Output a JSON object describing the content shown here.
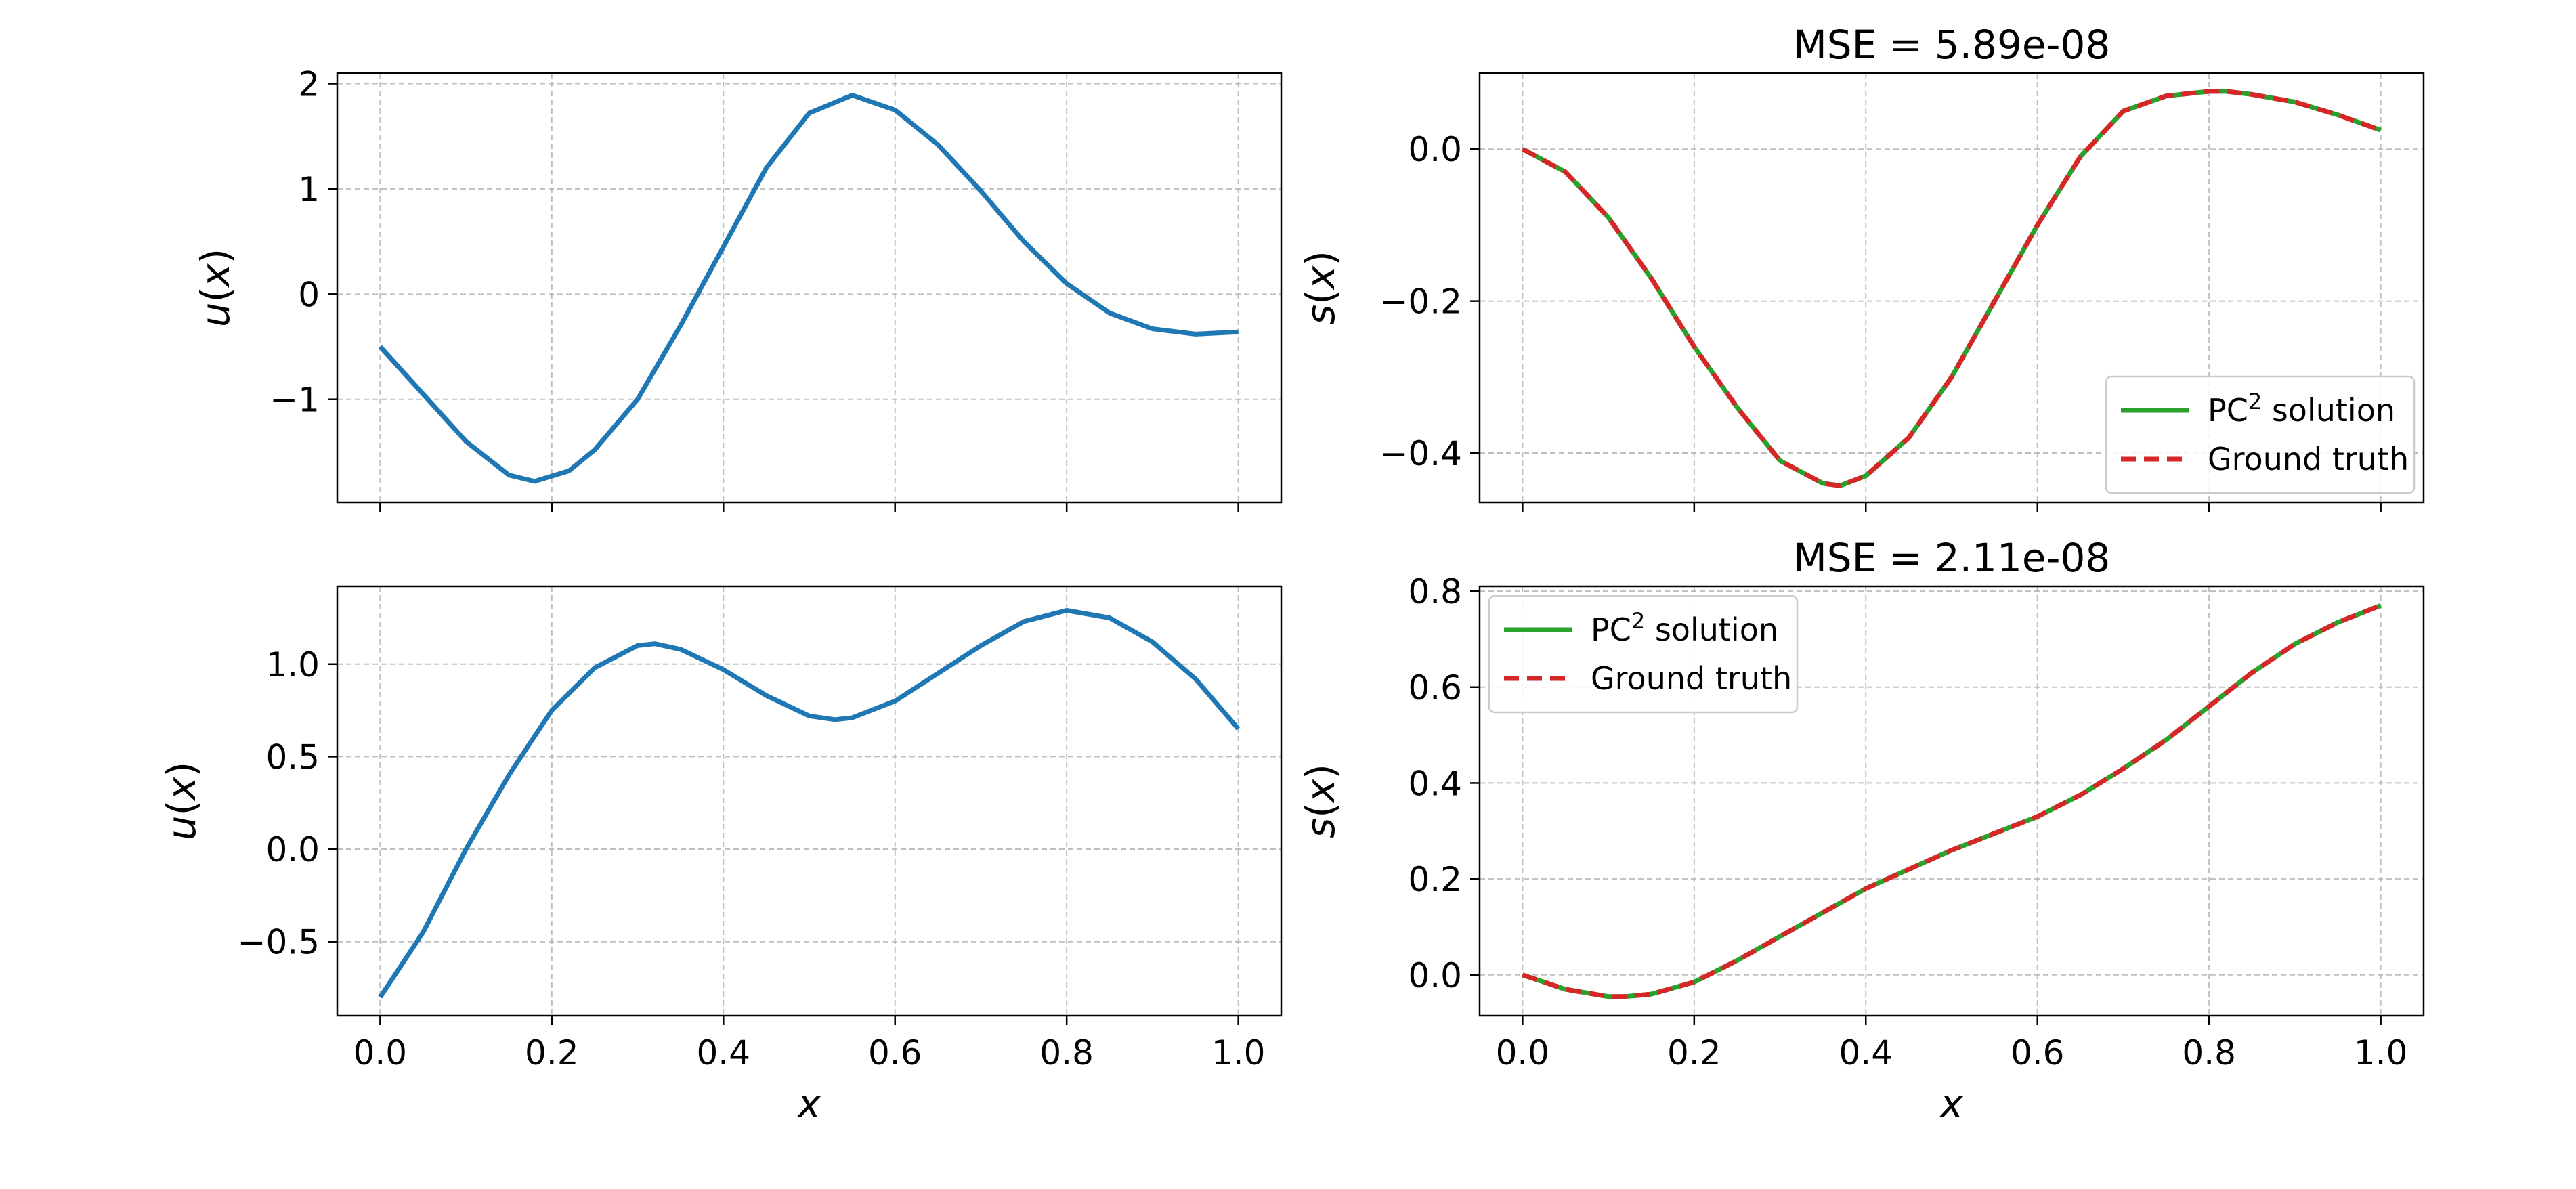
{
  "chart_data": [
    {
      "id": "top-left",
      "type": "line",
      "title": "",
      "xlabel": "",
      "ylabel": "u(x)",
      "ylabel_parts": [
        "u",
        "(",
        "x",
        ")"
      ],
      "xlim": [
        -0.05,
        1.05
      ],
      "ylim": [
        -1.98,
        2.1
      ],
      "grid": true,
      "show_xtick_labels": false,
      "xticks": [
        0.0,
        0.2,
        0.4,
        0.6,
        0.8,
        1.0
      ],
      "xtick_labels": [
        "0.0",
        "0.2",
        "0.4",
        "0.6",
        "0.8",
        "1.0"
      ],
      "yticks": [
        -1,
        0,
        1,
        2
      ],
      "ytick_labels": [
        "−1",
        "0",
        "1",
        "2"
      ],
      "colors": {
        "u": "#1f77b4"
      },
      "series": [
        {
          "style": "solid",
          "color": "#1f77b4",
          "x": [
            0.0,
            0.05,
            0.1,
            0.15,
            0.18,
            0.22,
            0.25,
            0.3,
            0.35,
            0.4,
            0.45,
            0.5,
            0.55,
            0.6,
            0.65,
            0.7,
            0.75,
            0.8,
            0.85,
            0.9,
            0.95,
            1.0
          ],
          "y": [
            -0.5,
            -0.95,
            -1.4,
            -1.72,
            -1.78,
            -1.68,
            -1.48,
            -1.0,
            -0.3,
            0.45,
            1.2,
            1.72,
            1.89,
            1.75,
            1.42,
            0.98,
            0.5,
            0.1,
            -0.18,
            -0.33,
            -0.38,
            -0.36
          ]
        }
      ]
    },
    {
      "id": "top-right",
      "type": "line",
      "title": "MSE = 5.89e-08",
      "xlabel": "",
      "ylabel": "s(x)",
      "ylabel_parts": [
        "s",
        "(",
        "x",
        ")"
      ],
      "xlim": [
        -0.05,
        1.05
      ],
      "ylim": [
        -0.465,
        0.1
      ],
      "grid": true,
      "show_xtick_labels": false,
      "xticks": [
        0.0,
        0.2,
        0.4,
        0.6,
        0.8,
        1.0
      ],
      "xtick_labels": [
        "0.0",
        "0.2",
        "0.4",
        "0.6",
        "0.8",
        "1.0"
      ],
      "yticks": [
        -0.4,
        -0.2,
        0.0
      ],
      "ytick_labels": [
        "−0.4",
        "−0.2",
        "0.0"
      ],
      "legend": {
        "position": "lower-right",
        "entries": [
          {
            "label_main": "PC",
            "label_sup": "2",
            "label_rest": " solution",
            "color": "#2ca02c",
            "style": "solid"
          },
          {
            "label_main": "Ground truth",
            "label_sup": "",
            "label_rest": "",
            "color": "#d62728",
            "style": "dashed"
          }
        ]
      },
      "colors": {
        "pc2": "#2ca02c",
        "truth": "#d62728"
      },
      "series": [
        {
          "style": "solid",
          "color": "#2ca02c",
          "x": [
            0.0,
            0.05,
            0.1,
            0.15,
            0.2,
            0.25,
            0.3,
            0.35,
            0.37,
            0.4,
            0.45,
            0.5,
            0.55,
            0.6,
            0.65,
            0.7,
            0.75,
            0.8,
            0.82,
            0.85,
            0.9,
            0.95,
            1.0
          ],
          "y": [
            0.0,
            -0.03,
            -0.09,
            -0.17,
            -0.26,
            -0.34,
            -0.41,
            -0.44,
            -0.443,
            -0.43,
            -0.38,
            -0.3,
            -0.2,
            -0.1,
            -0.01,
            0.05,
            0.07,
            0.076,
            0.076,
            0.072,
            0.062,
            0.045,
            0.025
          ]
        },
        {
          "style": "dashed",
          "color": "#d62728",
          "x": [
            0.0,
            0.05,
            0.1,
            0.15,
            0.2,
            0.25,
            0.3,
            0.35,
            0.37,
            0.4,
            0.45,
            0.5,
            0.55,
            0.6,
            0.65,
            0.7,
            0.75,
            0.8,
            0.82,
            0.85,
            0.9,
            0.95,
            1.0
          ],
          "y": [
            0.0,
            -0.03,
            -0.09,
            -0.17,
            -0.26,
            -0.34,
            -0.41,
            -0.44,
            -0.443,
            -0.43,
            -0.38,
            -0.3,
            -0.2,
            -0.1,
            -0.01,
            0.05,
            0.07,
            0.076,
            0.076,
            0.072,
            0.062,
            0.045,
            0.025
          ]
        }
      ]
    },
    {
      "id": "bottom-left",
      "type": "line",
      "title": "",
      "xlabel": "x",
      "ylabel": "u(x)",
      "ylabel_parts": [
        "u",
        "(",
        "x",
        ")"
      ],
      "xlim": [
        -0.05,
        1.05
      ],
      "ylim": [
        -0.9,
        1.42
      ],
      "grid": true,
      "show_xtick_labels": true,
      "xticks": [
        0.0,
        0.2,
        0.4,
        0.6,
        0.8,
        1.0
      ],
      "xtick_labels": [
        "0.0",
        "0.2",
        "0.4",
        "0.6",
        "0.8",
        "1.0"
      ],
      "yticks": [
        -0.5,
        0.0,
        0.5,
        1.0
      ],
      "ytick_labels": [
        "−0.5",
        "0.0",
        "0.5",
        "1.0"
      ],
      "colors": {
        "u": "#1f77b4"
      },
      "series": [
        {
          "style": "solid",
          "color": "#1f77b4",
          "x": [
            0.0,
            0.05,
            0.1,
            0.15,
            0.2,
            0.25,
            0.3,
            0.32,
            0.35,
            0.4,
            0.45,
            0.5,
            0.53,
            0.55,
            0.6,
            0.65,
            0.7,
            0.75,
            0.8,
            0.85,
            0.9,
            0.95,
            1.0
          ],
          "y": [
            -0.8,
            -0.45,
            0.0,
            0.4,
            0.75,
            0.98,
            1.1,
            1.11,
            1.08,
            0.97,
            0.83,
            0.72,
            0.7,
            0.71,
            0.8,
            0.95,
            1.1,
            1.23,
            1.29,
            1.25,
            1.12,
            0.92,
            0.65
          ]
        }
      ]
    },
    {
      "id": "bottom-right",
      "type": "line",
      "title": "MSE = 2.11e-08",
      "xlabel": "x",
      "ylabel": "s(x)",
      "ylabel_parts": [
        "s",
        "(",
        "x",
        ")"
      ],
      "xlim": [
        -0.05,
        1.05
      ],
      "ylim": [
        -0.085,
        0.81
      ],
      "grid": true,
      "show_xtick_labels": true,
      "xticks": [
        0.0,
        0.2,
        0.4,
        0.6,
        0.8,
        1.0
      ],
      "xtick_labels": [
        "0.0",
        "0.2",
        "0.4",
        "0.6",
        "0.8",
        "1.0"
      ],
      "yticks": [
        0.0,
        0.2,
        0.4,
        0.6,
        0.8
      ],
      "ytick_labels": [
        "0.0",
        "0.2",
        "0.4",
        "0.6",
        "0.8"
      ],
      "legend": {
        "position": "upper-left",
        "entries": [
          {
            "label_main": "PC",
            "label_sup": "2",
            "label_rest": " solution",
            "color": "#2ca02c",
            "style": "solid"
          },
          {
            "label_main": "Ground truth",
            "label_sup": "",
            "label_rest": "",
            "color": "#d62728",
            "style": "dashed"
          }
        ]
      },
      "colors": {
        "pc2": "#2ca02c",
        "truth": "#d62728"
      },
      "series": [
        {
          "style": "solid",
          "color": "#2ca02c",
          "x": [
            0.0,
            0.05,
            0.1,
            0.12,
            0.15,
            0.2,
            0.25,
            0.3,
            0.35,
            0.4,
            0.45,
            0.5,
            0.55,
            0.6,
            0.65,
            0.7,
            0.75,
            0.8,
            0.85,
            0.9,
            0.95,
            1.0
          ],
          "y": [
            0.0,
            -0.03,
            -0.045,
            -0.045,
            -0.04,
            -0.015,
            0.03,
            0.08,
            0.13,
            0.18,
            0.22,
            0.26,
            0.295,
            0.33,
            0.375,
            0.43,
            0.49,
            0.56,
            0.63,
            0.69,
            0.735,
            0.77
          ]
        },
        {
          "style": "dashed",
          "color": "#d62728",
          "x": [
            0.0,
            0.05,
            0.1,
            0.12,
            0.15,
            0.2,
            0.25,
            0.3,
            0.35,
            0.4,
            0.45,
            0.5,
            0.55,
            0.6,
            0.65,
            0.7,
            0.75,
            0.8,
            0.85,
            0.9,
            0.95,
            1.0
          ],
          "y": [
            0.0,
            -0.03,
            -0.045,
            -0.045,
            -0.04,
            -0.015,
            0.03,
            0.08,
            0.13,
            0.18,
            0.22,
            0.26,
            0.295,
            0.33,
            0.375,
            0.43,
            0.49,
            0.56,
            0.63,
            0.69,
            0.735,
            0.77
          ]
        }
      ]
    }
  ]
}
